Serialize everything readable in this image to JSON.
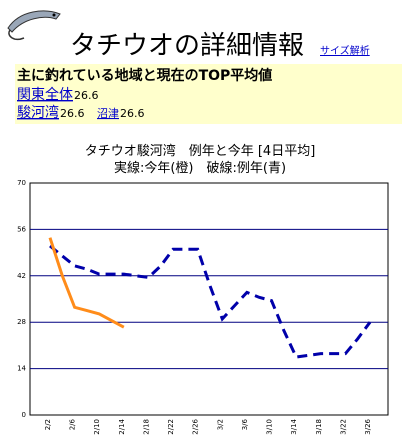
{
  "header": {
    "title": "タチウオの詳細情報",
    "link": "サイズ解析"
  },
  "summary": {
    "heading": "主に釣れている地域と現在のTOP平均値",
    "areas": [
      {
        "name": "関東全体",
        "value": "26.6"
      },
      {
        "name": "駿河湾",
        "value": "26.6"
      },
      {
        "name": "沼津",
        "value": "26.6"
      }
    ]
  },
  "chart_data": {
    "type": "line",
    "title": "タチウオ駿河湾　例年と今年 [4日平均]",
    "subtitle": "実線:今年(橙)　破線:例年(青)",
    "categories": [
      "2/2",
      null,
      "2/6",
      null,
      "2/10",
      null,
      "2/14",
      null,
      "2/18",
      null,
      "2/22",
      null,
      "2/26",
      null,
      "3/2",
      null,
      "3/6",
      null,
      "3/10",
      null,
      "3/14",
      null,
      "3/18",
      null,
      "3/22",
      null,
      "3/26"
    ],
    "series": [
      {
        "name": "例年",
        "color": "#0000aa",
        "dashed": true,
        "values": [
          51,
          48,
          45,
          44,
          42.5,
          42.5,
          42.5,
          42,
          41.5,
          45,
          50,
          50,
          50,
          39,
          29,
          33,
          37,
          35.5,
          34.5,
          25.5,
          17.5,
          18,
          18.5,
          18.5,
          18.5,
          23,
          28
        ]
      },
      {
        "name": "今年",
        "color": "#ff8c1a",
        "dashed": false,
        "values": [
          53.5,
          42,
          32.5,
          31.5,
          30.5,
          28.5,
          26.5,
          null,
          null,
          null,
          null,
          null,
          null,
          null,
          null,
          null,
          null,
          null,
          null,
          null,
          null,
          null,
          null,
          null,
          null,
          null,
          null
        ]
      }
    ],
    "ylim": [
      0,
      70
    ],
    "yticks": [
      0,
      14,
      28,
      42,
      56,
      70
    ],
    "grid": true
  }
}
